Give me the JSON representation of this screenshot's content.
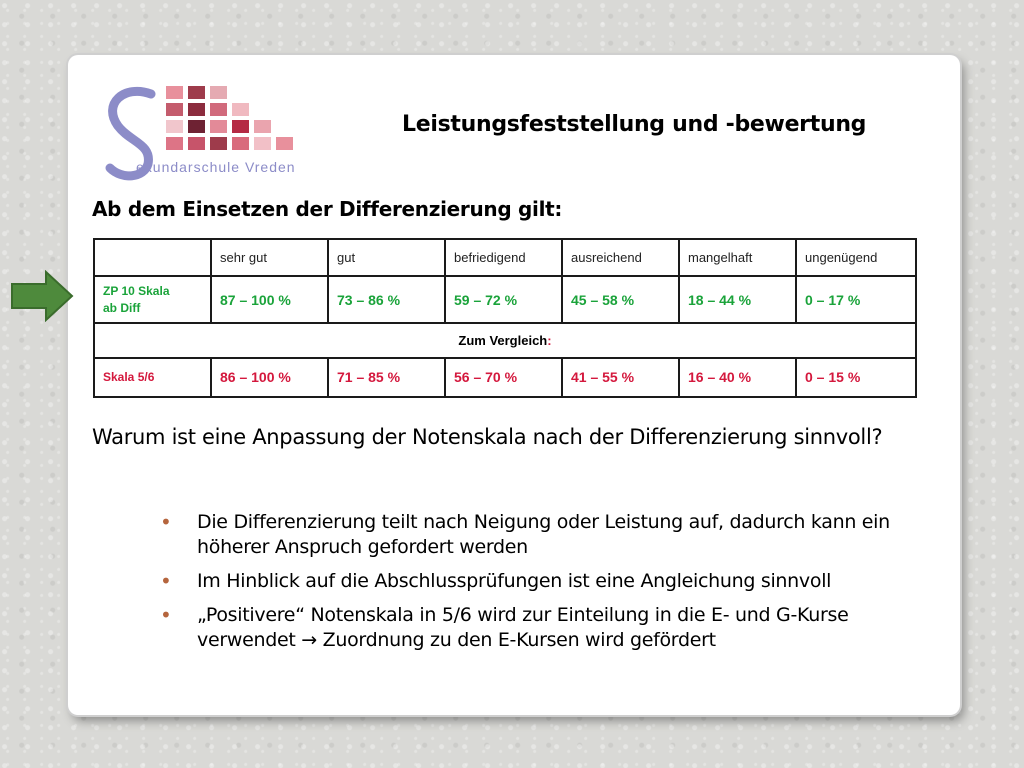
{
  "logo": {
    "text": "ekundarschule Vreden"
  },
  "title": "Leistungsfeststellung  und -bewertung",
  "subheading": "Ab dem Einsetzen der Differenzierung gilt:",
  "table": {
    "headers": [
      "",
      "sehr gut",
      "gut",
      "befriedigend",
      "ausreichend",
      "mangelhaft",
      "ungenügend"
    ],
    "row1": {
      "label_line1": "ZP 10 Skala",
      "label_line2": "ab Diff",
      "values": [
        "87 – 100 %",
        "73 – 86 %",
        "59 – 72 %",
        "45 – 58 %",
        "18 – 44 %",
        "0 – 17 %"
      ]
    },
    "comparison": {
      "label": "Zum Vergleich",
      "colon": ":"
    },
    "row2": {
      "label": "Skala 5/6",
      "values": [
        "86 – 100 %",
        "71 – 85 %",
        "56 – 70 %",
        "41 – 55 %",
        "16 – 40 %",
        "0 – 15 %"
      ]
    }
  },
  "question": "Warum ist eine Anpassung der Notenskala nach der Differenzierung sinnvoll?",
  "bullets": [
    "Die Differenzierung teilt nach Neigung oder Leistung auf, dadurch kann ein höherer Anspruch gefordert werden",
    "Im Hinblick auf die Abschlussprüfungen ist eine Angleichung sinnvoll",
    "„Positivere“ Notenskala in 5/6 wird zur Einteilung in die E- und G-Kurse verwendet → Zuordnung zu den E-Kursen wird gefördert"
  ],
  "colors": {
    "green": "#1aa33a",
    "red": "#d4183d",
    "arrow": "#4e8a3c",
    "bullet": "#b5653d"
  },
  "icons": {
    "arrow": "right-arrow-icon",
    "bullet": "bullet-icon"
  }
}
